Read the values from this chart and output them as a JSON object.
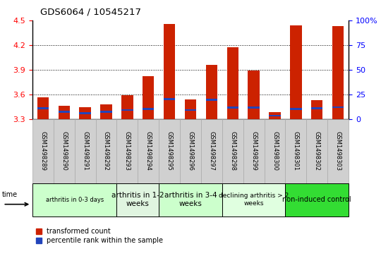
{
  "title": "GDS6064 / 10545217",
  "samples": [
    "GSM1498289",
    "GSM1498290",
    "GSM1498291",
    "GSM1498292",
    "GSM1498293",
    "GSM1498294",
    "GSM1498295",
    "GSM1498296",
    "GSM1498297",
    "GSM1498298",
    "GSM1498299",
    "GSM1498300",
    "GSM1498301",
    "GSM1498302",
    "GSM1498303"
  ],
  "transformed_count": [
    3.565,
    3.46,
    3.44,
    3.48,
    3.59,
    3.82,
    4.46,
    3.535,
    3.96,
    4.175,
    3.89,
    3.38,
    4.44,
    3.53,
    4.43
  ],
  "blue_bar_position": [
    3.42,
    3.375,
    3.36,
    3.375,
    3.4,
    3.41,
    3.53,
    3.4,
    3.525,
    3.43,
    3.43,
    3.33,
    3.41,
    3.42,
    3.435
  ],
  "blue_bar_height": 0.022,
  "groups": [
    {
      "label": "arthritis in 0-3 days",
      "start": 0,
      "end": 4,
      "color": "#ccffcc",
      "fontsize": 6
    },
    {
      "label": "arthritis in 1-2\nweeks",
      "start": 4,
      "end": 6,
      "color": "#e0f5e0",
      "fontsize": 7.5
    },
    {
      "label": "arthritis in 3-4\nweeks",
      "start": 6,
      "end": 9,
      "color": "#ccffcc",
      "fontsize": 7.5
    },
    {
      "label": "declining arthritis > 2\nweeks",
      "start": 9,
      "end": 12,
      "color": "#e0ffe0",
      "fontsize": 6.5
    },
    {
      "label": "non-induced control",
      "start": 12,
      "end": 15,
      "color": "#33dd33",
      "fontsize": 7
    }
  ],
  "ylim_left": [
    3.3,
    4.5
  ],
  "yticks_left": [
    3.3,
    3.6,
    3.9,
    4.2,
    4.5
  ],
  "ylim_right": [
    0,
    100
  ],
  "yticks_right": [
    0,
    25,
    50,
    75,
    100
  ],
  "bar_color": "#cc2200",
  "blue_color": "#2244bb",
  "bar_width": 0.55,
  "baseline": 3.3,
  "sample_box_color": "#d0d0d0",
  "sample_box_edge": "#aaaaaa"
}
